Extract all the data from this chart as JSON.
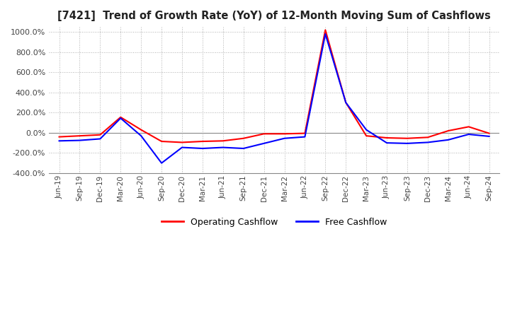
{
  "title": "[7421]  Trend of Growth Rate (YoY) of 12-Month Moving Sum of Cashflows",
  "background_color": "#ffffff",
  "grid_color": "#b0b0b0",
  "ylim": [
    -400,
    1050
  ],
  "yticks": [
    -400,
    -200,
    0,
    200,
    400,
    600,
    800,
    1000
  ],
  "x_labels": [
    "Jun-19",
    "Sep-19",
    "Dec-19",
    "Mar-20",
    "Jun-20",
    "Sep-20",
    "Dec-20",
    "Mar-21",
    "Jun-21",
    "Sep-21",
    "Dec-21",
    "Mar-22",
    "Jun-22",
    "Sep-22",
    "Dec-22",
    "Mar-23",
    "Jun-23",
    "Sep-23",
    "Dec-23",
    "Mar-24",
    "Jun-24",
    "Sep-24"
  ],
  "operating_cashflow": [
    -40,
    -30,
    -20,
    155,
    30,
    -85,
    -95,
    -85,
    -80,
    -55,
    -10,
    -10,
    -5,
    1020,
    300,
    -30,
    -50,
    -55,
    -45,
    20,
    60,
    -5
  ],
  "free_cashflow": [
    -80,
    -75,
    -60,
    145,
    -30,
    -300,
    -145,
    -155,
    -145,
    -155,
    -105,
    -55,
    -40,
    980,
    300,
    30,
    -100,
    -105,
    -95,
    -70,
    -15,
    -35
  ],
  "line_colors": {
    "operating": "#ff0000",
    "free": "#0000ff"
  },
  "legend_labels": [
    "Operating Cashflow",
    "Free Cashflow"
  ]
}
